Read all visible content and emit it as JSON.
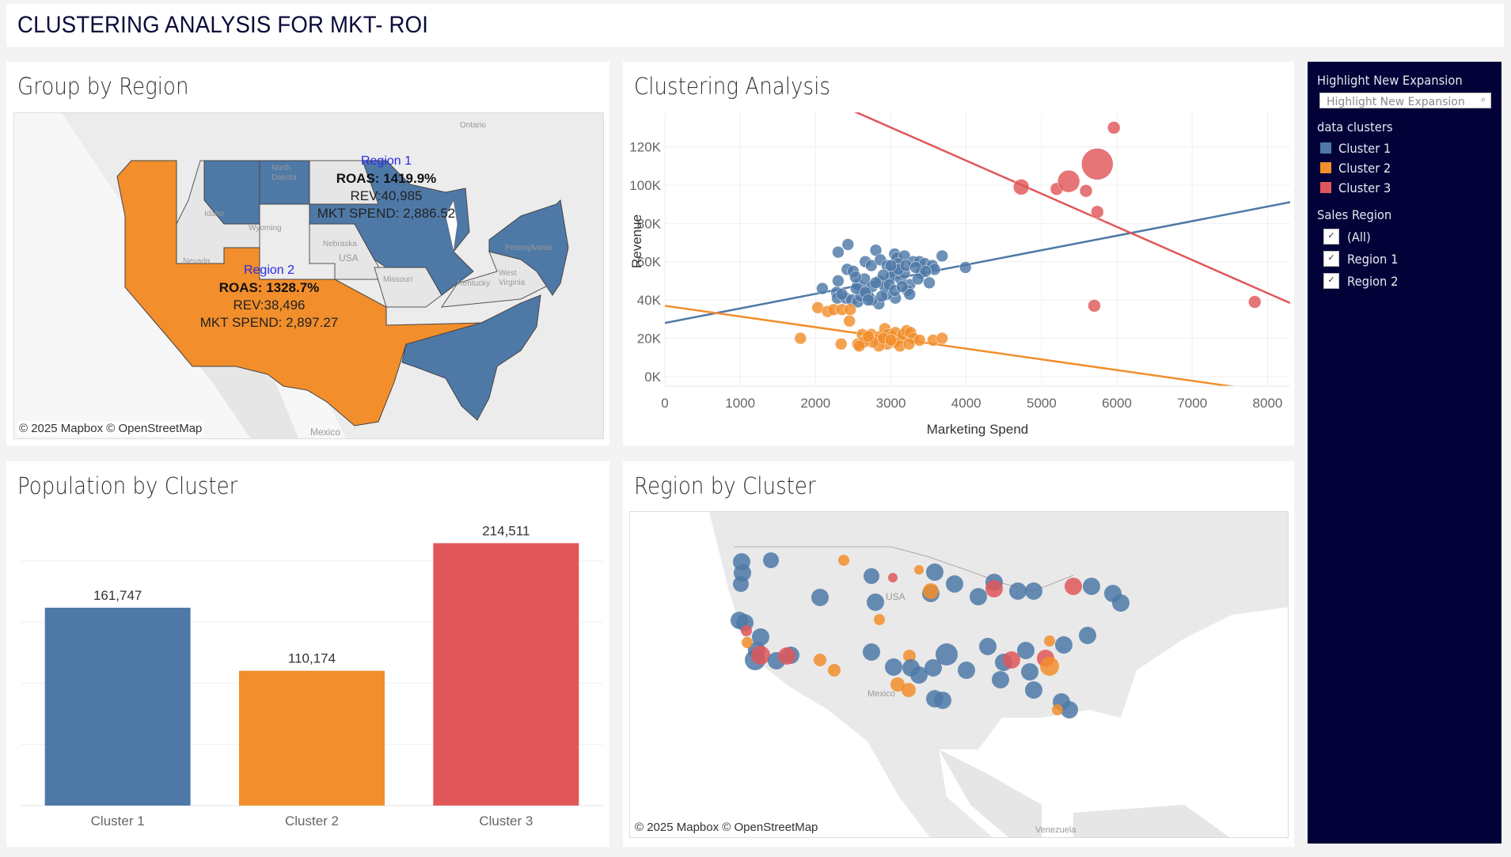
{
  "page": {
    "title": "CLUSTERING ANALYSIS FOR MKT- ROI"
  },
  "colors": {
    "cluster1": "#4e79a7",
    "cluster2": "#f28e2b",
    "cluster3": "#e15759",
    "sidebar_bg": "#020238",
    "region_label": "#2929e6"
  },
  "group_by_region": {
    "title": "Group by Region",
    "attribution": "© 2025 Mapbox © OpenStreetMap",
    "map_labels": [
      "Ontario",
      "North Dakota",
      "Idaho",
      "Wyoming",
      "Nebraska",
      "USA",
      "Nevada",
      "Missouri",
      "Pennsylvania",
      "Kentucky",
      "West Virginia",
      "Mexico"
    ],
    "regions": [
      {
        "name": "Region 1",
        "roas": "ROAS: 1419.9%",
        "rev": "REV:40,985",
        "mkt_spend": "MKT SPEND: 2,886.52",
        "cluster_color": "cluster1"
      },
      {
        "name": "Region 2",
        "roas": "ROAS: 1328.7%",
        "rev": "REV:38,496",
        "mkt_spend": "MKT SPEND: 2,897.27",
        "cluster_color": "cluster2"
      }
    ]
  },
  "population_by_cluster": {
    "title": "Population by Cluster"
  },
  "region_by_cluster": {
    "title": "Region by Cluster",
    "attribution": "© 2025 Mapbox © OpenStreetMap",
    "map_labels": [
      "USA",
      "Mexico",
      "Venezuela"
    ]
  },
  "sidebar": {
    "highlight": {
      "title": "Highlight New Expansion",
      "placeholder": "Highlight New Expansion",
      "value": ""
    },
    "clusters_title": "data clusters",
    "clusters": [
      {
        "label": "Cluster 1",
        "color": "#4e79a7"
      },
      {
        "label": "Cluster 2",
        "color": "#f28e2b"
      },
      {
        "label": "Cluster 3",
        "color": "#e15759"
      }
    ],
    "sales_region_title": "Sales Region",
    "sales_regions": [
      {
        "label": "(All)",
        "checked": true
      },
      {
        "label": "Region 1",
        "checked": true
      },
      {
        "label": "Region 2",
        "checked": true
      }
    ],
    "check_glyph": "✓"
  },
  "chart_data": [
    {
      "type": "scatter",
      "title": "Clustering Analysis",
      "xlabel": "Marketing Spend",
      "ylabel": "Revenue",
      "xlim": [
        0,
        8300
      ],
      "ylim": [
        -5000,
        138000
      ],
      "x_ticks": [
        0,
        1000,
        2000,
        3000,
        4000,
        5000,
        6000,
        7000,
        8000
      ],
      "x_tick_labels": [
        "0",
        "1000",
        "2000",
        "3000",
        "4000",
        "5000",
        "6000",
        "7000",
        "8000"
      ],
      "y_ticks": [
        0,
        20000,
        40000,
        60000,
        80000,
        100000,
        120000
      ],
      "y_tick_labels": [
        "0K",
        "20K",
        "40K",
        "60K",
        "80K",
        "100K",
        "120K"
      ],
      "grid": true,
      "series": [
        {
          "name": "Cluster 1",
          "color": "#4e79a7",
          "trend": {
            "intercept": 28000,
            "slope": 7.6
          },
          "points": [
            [
              2300,
              65000
            ],
            [
              2430,
              69000
            ],
            [
              2800,
              66000
            ],
            [
              2420,
              56000
            ],
            [
              2500,
              55000
            ],
            [
              2300,
              50000
            ],
            [
              2090,
              46000
            ],
            [
              2280,
              44000
            ],
            [
              2290,
              41000
            ],
            [
              2400,
              41000
            ],
            [
              2480,
              40000
            ],
            [
              2560,
              39000
            ],
            [
              2600,
              42000
            ],
            [
              2660,
              60000
            ],
            [
              2740,
              58000
            ],
            [
              2860,
              61000
            ],
            [
              2950,
              58000
            ],
            [
              3050,
              64000
            ],
            [
              3080,
              62000
            ],
            [
              3180,
              63000
            ],
            [
              3100,
              59000
            ],
            [
              3080,
              56000
            ],
            [
              3020,
              55000
            ],
            [
              3300,
              60000
            ],
            [
              3380,
              60000
            ],
            [
              3450,
              59000
            ],
            [
              3550,
              58000
            ],
            [
              3680,
              63000
            ],
            [
              3580,
              56000
            ],
            [
              3400,
              54000
            ],
            [
              3510,
              49000
            ],
            [
              3250,
              48000
            ],
            [
              3220,
              45000
            ],
            [
              3250,
              43000
            ],
            [
              3060,
              41000
            ],
            [
              2950,
              43000
            ],
            [
              2840,
              38000
            ],
            [
              2750,
              40000
            ],
            [
              2700,
              42000
            ],
            [
              2620,
              46000
            ],
            [
              2560,
              48000
            ],
            [
              2650,
              51000
            ],
            [
              2750,
              47000
            ],
            [
              2850,
              50000
            ],
            [
              2920,
              47000
            ],
            [
              3000,
              52000
            ],
            [
              3130,
              51000
            ],
            [
              3180,
              54000
            ],
            [
              2900,
              53000
            ],
            [
              2800,
              49000
            ],
            [
              2540,
              46000
            ],
            [
              2660,
              44000
            ],
            [
              2980,
              48000
            ],
            [
              3100,
              56000
            ],
            [
              3200,
              58000
            ],
            [
              3330,
              57000
            ],
            [
              3460,
              55000
            ],
            [
              3000,
              58000
            ],
            [
              3990,
              57000
            ],
            [
              2700,
              40000
            ],
            [
              2880,
              42000
            ],
            [
              3050,
              45000
            ],
            [
              2350,
              43000
            ],
            [
              2530,
              52000
            ],
            [
              3150,
              47000
            ],
            [
              3360,
              51000
            ]
          ]
        },
        {
          "name": "Cluster 2",
          "color": "#f28e2b",
          "trend": {
            "intercept": 37000,
            "slope": -5.6
          },
          "points": [
            [
              1800,
              20000
            ],
            [
              2030,
              36000
            ],
            [
              2160,
              34000
            ],
            [
              2240,
              35000
            ],
            [
              2350,
              35000
            ],
            [
              2460,
              35000
            ],
            [
              2450,
              29000
            ],
            [
              2340,
              17000
            ],
            [
              2560,
              17000
            ],
            [
              2620,
              22000
            ],
            [
              2680,
              20000
            ],
            [
              2740,
              22000
            ],
            [
              2800,
              19000
            ],
            [
              2860,
              21000
            ],
            [
              2920,
              25000
            ],
            [
              2960,
              22000
            ],
            [
              3020,
              21000
            ],
            [
              3060,
              23000
            ],
            [
              3120,
              20000
            ],
            [
              3160,
              22000
            ],
            [
              3210,
              24000
            ],
            [
              3260,
              23000
            ],
            [
              3300,
              20000
            ],
            [
              3380,
              19000
            ],
            [
              3560,
              19000
            ],
            [
              3680,
              20000
            ],
            [
              3050,
              18000
            ],
            [
              2950,
              17000
            ],
            [
              2840,
              16000
            ],
            [
              2760,
              18000
            ],
            [
              2640,
              18000
            ],
            [
              2580,
              16000
            ],
            [
              3120,
              16000
            ],
            [
              3240,
              17000
            ],
            [
              2700,
              21000
            ],
            [
              2900,
              20000
            ],
            [
              3000,
              19000
            ]
          ]
        },
        {
          "name": "Cluster 3",
          "color": "#e15759",
          "trend": {
            "intercept": 182000,
            "slope": -17.3
          },
          "points": [
            [
              4730,
              99000,
              10
            ],
            [
              5200,
              98000,
              8
            ],
            [
              5360,
              102000,
              14
            ],
            [
              5590,
              97000,
              8
            ],
            [
              5740,
              111000,
              20
            ],
            [
              5740,
              86000,
              8
            ],
            [
              5960,
              130000,
              8
            ],
            [
              5700,
              37000,
              8
            ],
            [
              7830,
              39000,
              8
            ]
          ]
        }
      ]
    },
    {
      "type": "bar",
      "title": "Population by Cluster",
      "categories": [
        "Cluster 1",
        "Cluster 2",
        "Cluster 3"
      ],
      "values": [
        161747,
        110174,
        214511
      ],
      "value_labels": [
        "161,747",
        "110,174",
        "214,511"
      ],
      "colors": [
        "#4e79a7",
        "#f28e2b",
        "#e15759"
      ],
      "ylim": [
        0,
        240000
      ],
      "y_gridlines": [
        50000,
        100000,
        150000,
        200000
      ],
      "xlabel": "",
      "ylabel": "",
      "grid": true
    }
  ]
}
